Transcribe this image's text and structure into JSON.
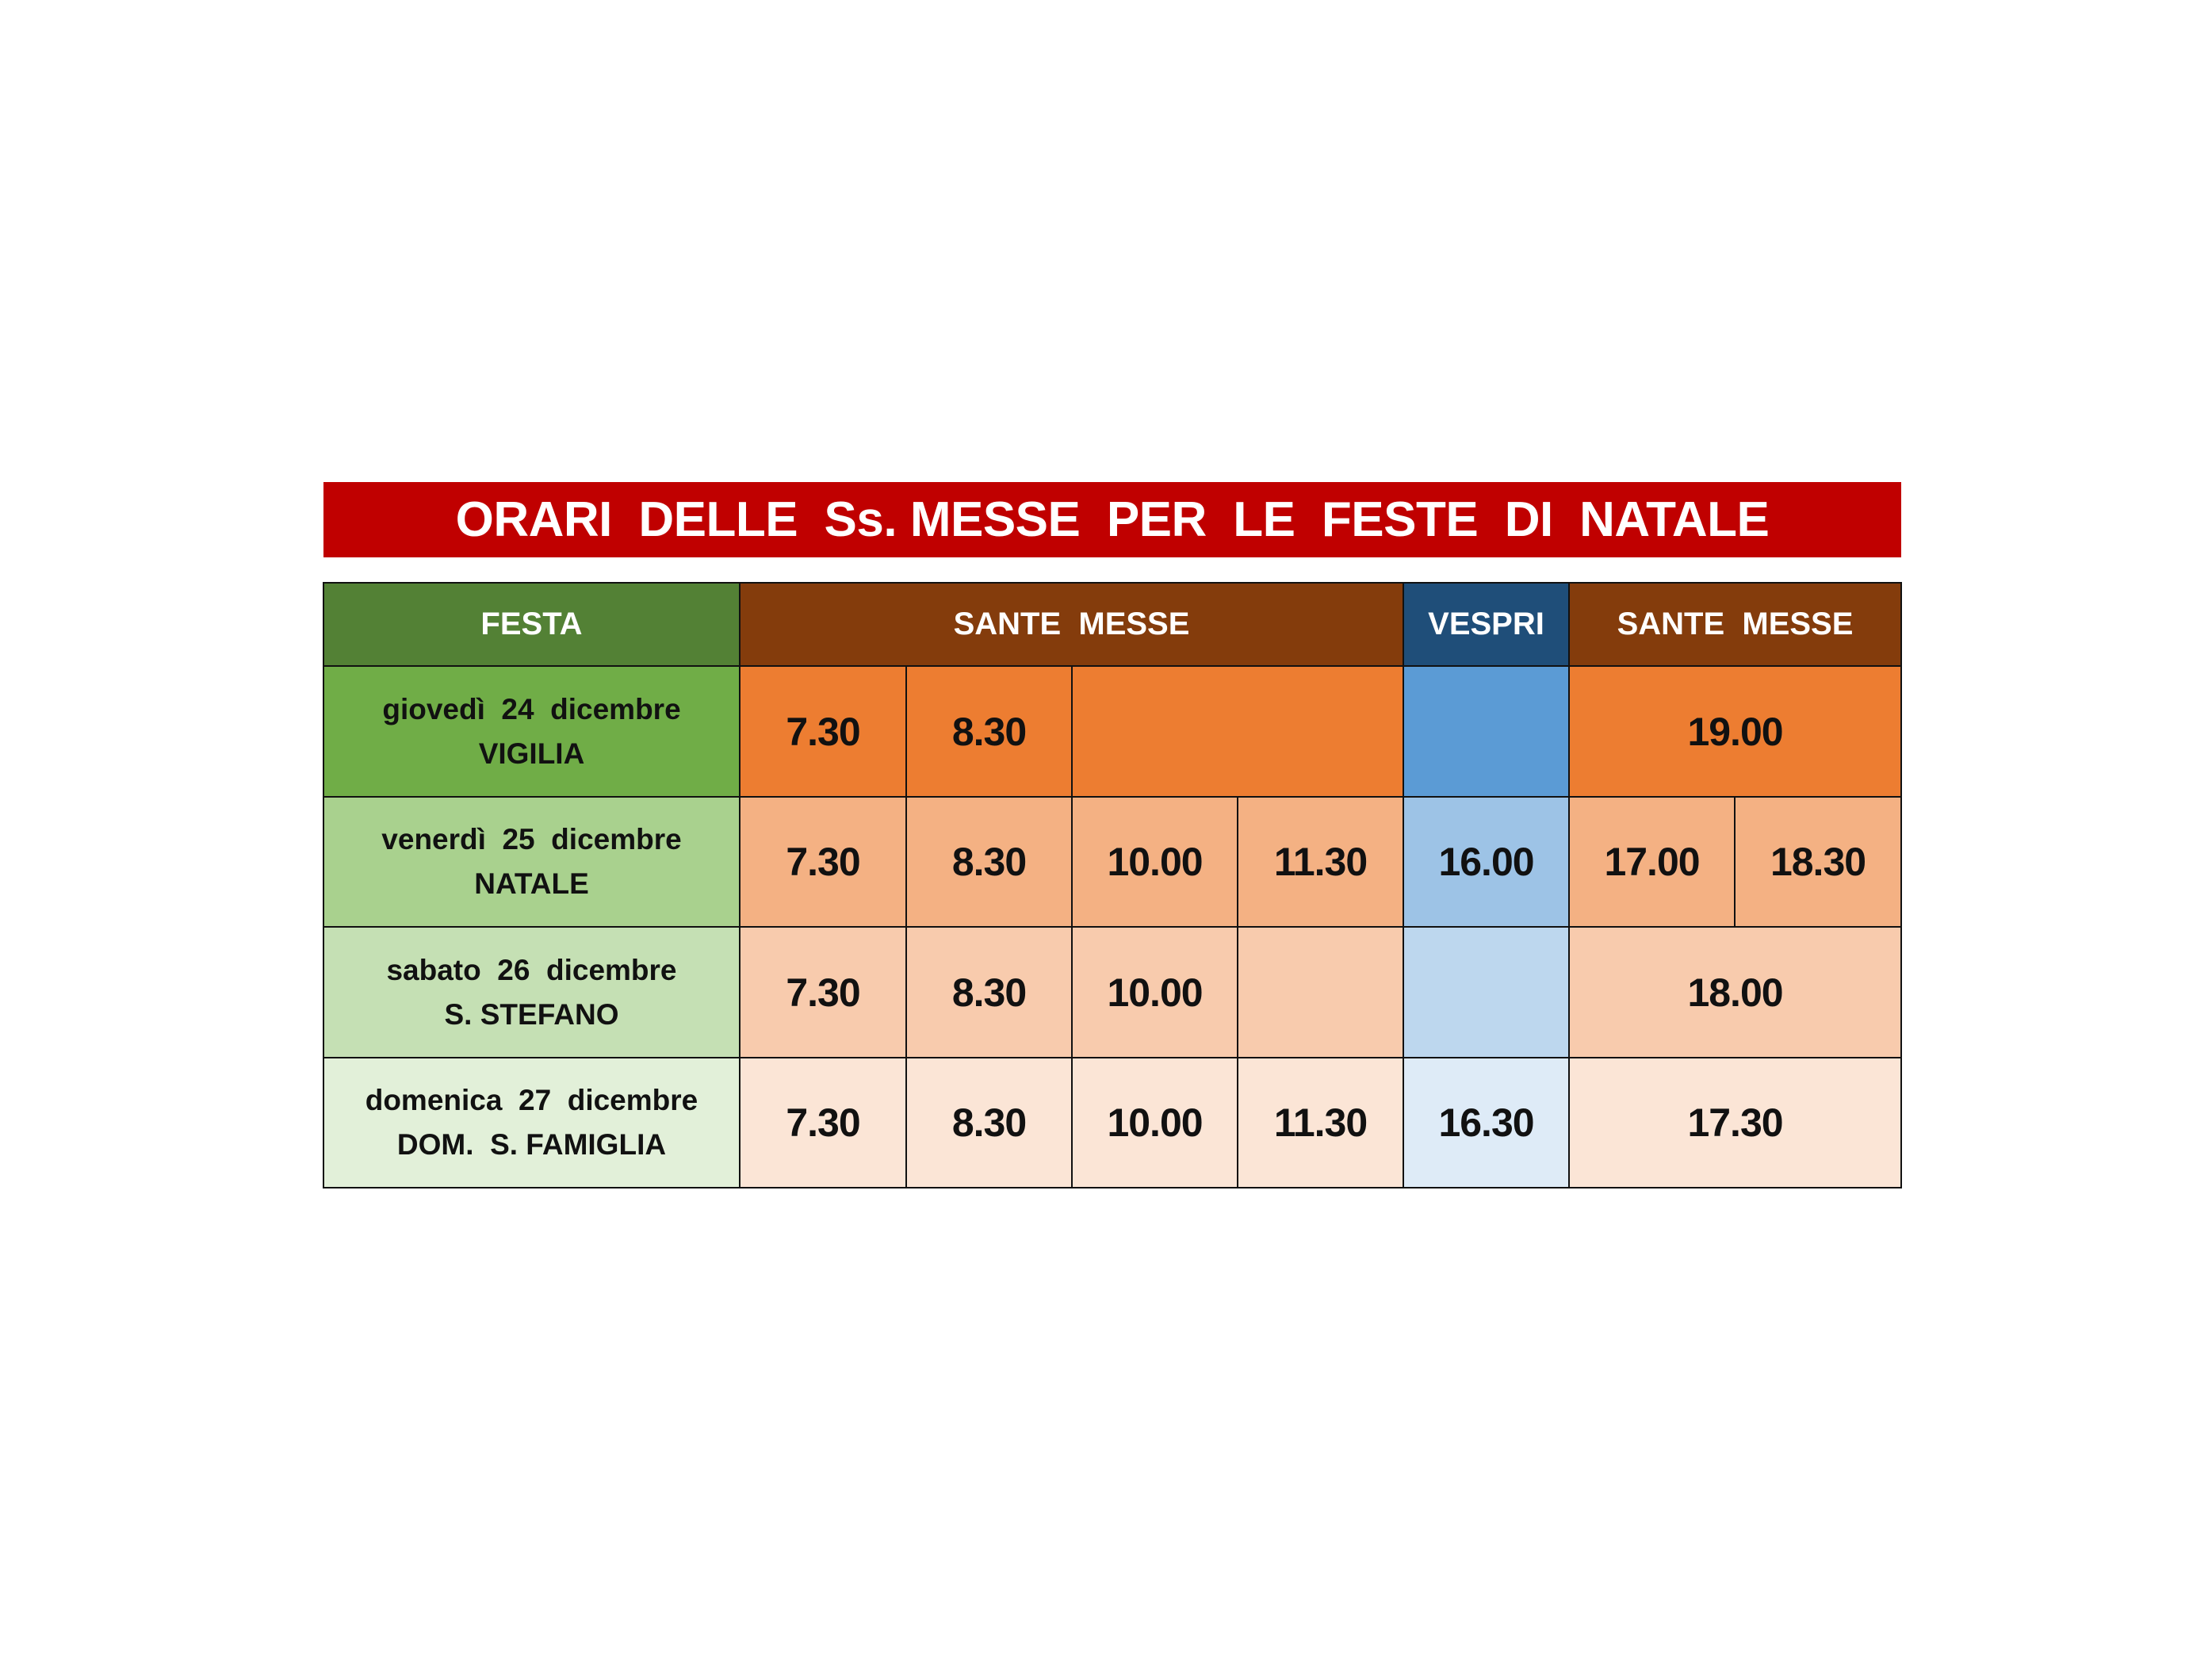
{
  "title": "ORARI  DELLE  Ss. MESSE  PER  LE  FESTE  DI  NATALE",
  "header": {
    "festa": "FESTA",
    "sante_messe_1": "SANTE  MESSE",
    "vespri": "VESPRI",
    "sante_messe_2": "SANTE  MESSE"
  },
  "rows": [
    {
      "day": "giovedì  24  dicembre",
      "name": "VIGILIA",
      "morning": [
        "7.30",
        "8.30",
        ""
      ],
      "vespri": "",
      "evening": [
        "19.00"
      ]
    },
    {
      "day": "venerdì  25  dicembre",
      "name": "NATALE",
      "morning": [
        "7.30",
        "8.30",
        "10.00",
        "11.30"
      ],
      "vespri": "16.00",
      "evening": [
        "17.00",
        "18.30"
      ]
    },
    {
      "day": "sabato  26  dicembre",
      "name": "S. STEFANO",
      "morning": [
        "7.30",
        "8.30",
        "10.00",
        ""
      ],
      "vespri": "",
      "evening": [
        "18.00"
      ]
    },
    {
      "day": "domenica  27  dicembre",
      "name": "DOM.  S. FAMIGLIA",
      "morning": [
        "7.30",
        "8.30",
        "10.00",
        "11.30"
      ],
      "vespri": "16.30",
      "evening": [
        "17.30"
      ]
    }
  ],
  "colors": {
    "title": "#C00000",
    "header_festa": "#538135",
    "header_messe": "#843C0C",
    "header_vespri": "#1F4E79",
    "festa_rows": [
      "#70AD47",
      "#A9D18E",
      "#C5E0B4",
      "#E2F0D9"
    ],
    "messe_rows": [
      "#ED7D31",
      "#F4B183",
      "#F8CBAD",
      "#FBE5D6"
    ],
    "vespri_rows": [
      "#5B9BD5",
      "#9DC3E6",
      "#BDD7EE",
      "#DEEBF7"
    ]
  }
}
